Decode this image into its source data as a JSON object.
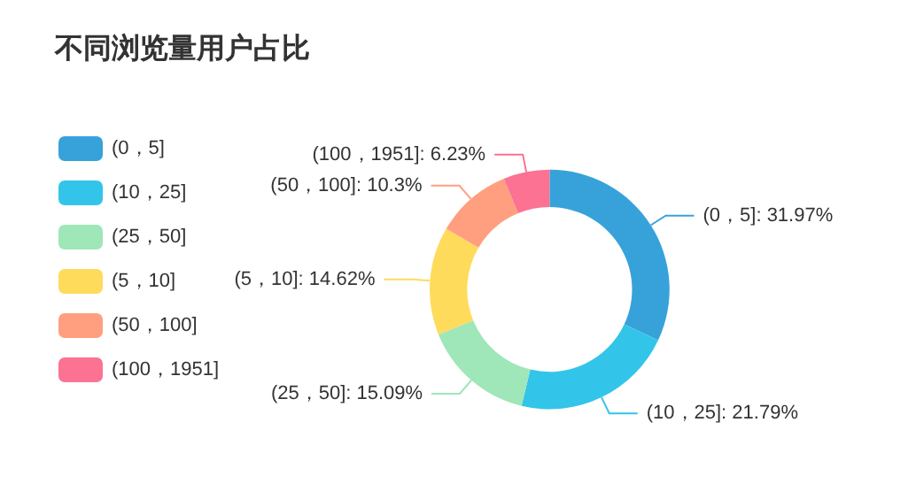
{
  "chart_data": {
    "type": "donut",
    "title": "不同浏览量用户占比",
    "categories": [
      "(0，5]",
      "(10，25]",
      "(25，50]",
      "(5，10]",
      "(50，100]",
      "(100，1951]"
    ],
    "values": [
      31.97,
      21.79,
      15.09,
      14.62,
      10.3,
      6.23
    ],
    "colors": [
      "#37a2da",
      "#32c5e9",
      "#9fe6b8",
      "#ffdb5c",
      "#ff9f7f",
      "#fb7293"
    ],
    "value_labels": [
      ": 31.97%",
      ": 21.79%",
      ": 15.09%",
      ": 14.62%",
      ": 10.3%",
      ": 6.23%"
    ],
    "legend": "left"
  }
}
